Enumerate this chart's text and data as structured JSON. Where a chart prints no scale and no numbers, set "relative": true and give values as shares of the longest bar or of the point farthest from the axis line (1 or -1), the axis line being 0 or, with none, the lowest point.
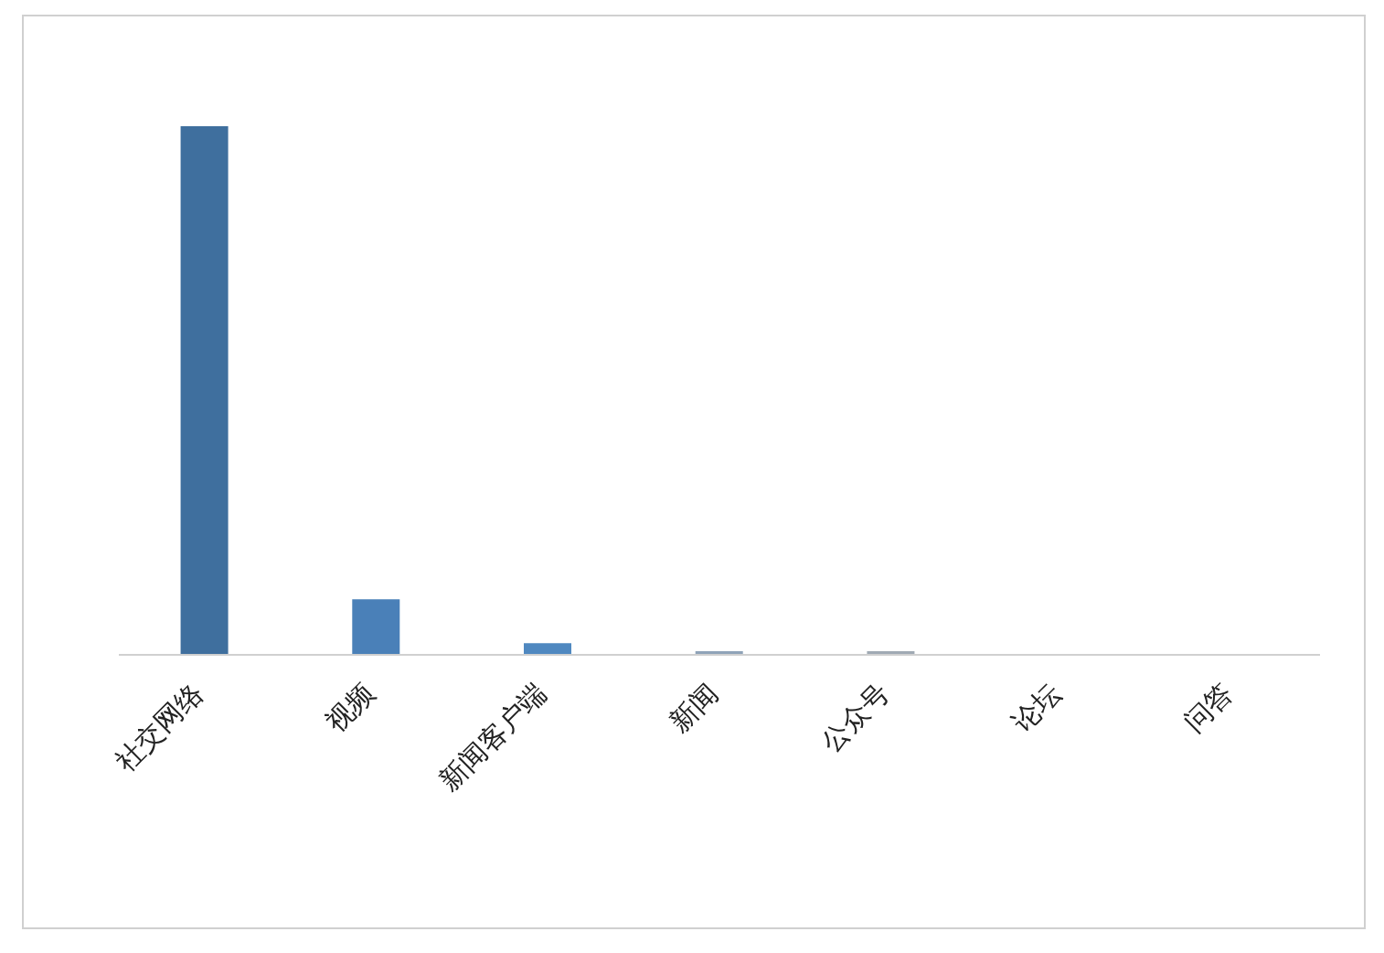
{
  "chart_data": {
    "type": "bar",
    "relative": true,
    "categories": [
      "社交网络",
      "视频",
      "新闻客户端",
      "新闻",
      "公众号",
      "论坛",
      "问答"
    ],
    "values": [
      1,
      0.105,
      0.022,
      0.007,
      0.007,
      0,
      0
    ],
    "colors": [
      "#3f6f9e",
      "#4a80b8",
      "#4f88c0",
      "#8fa3b8",
      "#a0aab4",
      "#b0b0b0",
      "#b0b0b0"
    ],
    "grid": false,
    "legend": false
  }
}
